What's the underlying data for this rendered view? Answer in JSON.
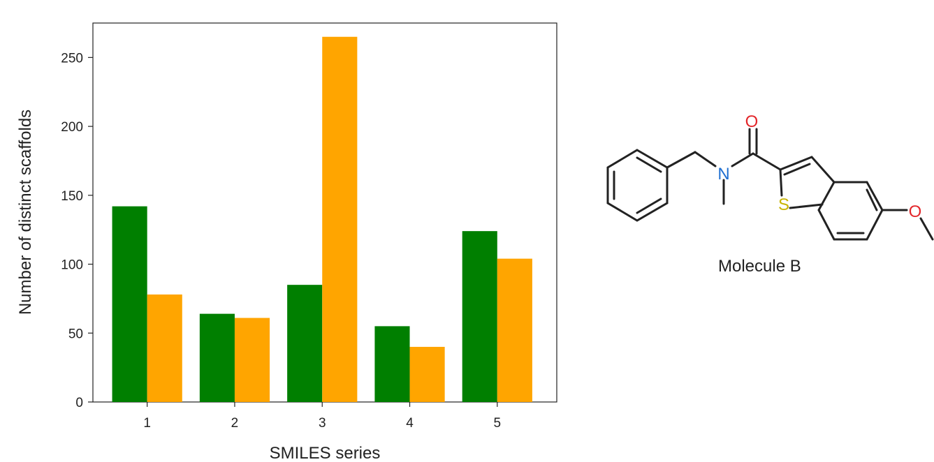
{
  "chart_data": {
    "type": "bar",
    "categories": [
      "1",
      "2",
      "3",
      "4",
      "5"
    ],
    "series": [
      {
        "color": "#007f00",
        "values": [
          142,
          64,
          85,
          55,
          124
        ]
      },
      {
        "color": "#ffa500",
        "values": [
          78,
          61,
          265,
          40,
          104
        ]
      }
    ],
    "xlabel": "SMILES series",
    "ylabel": "Number of distinct scaffolds",
    "ylim": [
      0,
      275
    ],
    "yticks": [
      "0",
      "50",
      "100",
      "150",
      "200",
      "250"
    ],
    "grid": false,
    "legend": "none"
  },
  "molecule": {
    "caption": "Molecule B",
    "atoms": {
      "oxygen_carbonyl": "O",
      "nitrogen": "N",
      "sulfur": "S",
      "oxygen_ether": "O"
    },
    "colors": {
      "oxygen": "#e3262a",
      "nitrogen": "#1f6fd1",
      "sulfur": "#c8b400",
      "bond": "#222222"
    }
  }
}
